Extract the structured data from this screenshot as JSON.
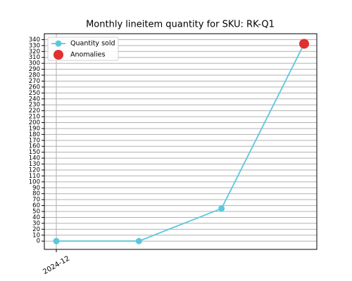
{
  "chart_data": {
    "type": "line",
    "title": "Monthly lineitem quantity for SKU: RK-Q1",
    "categories": [
      "2024-12",
      null,
      null,
      null
    ],
    "series": [
      {
        "name": "Quantity sold",
        "color": "#5bc8dc",
        "values": [
          0,
          0,
          55,
          333
        ]
      },
      {
        "name": "Anomalies",
        "color": "#e03030",
        "values": [
          null,
          null,
          null,
          333
        ],
        "marker_only": true
      }
    ],
    "ylim": [
      -14,
      350
    ],
    "yticks": [
      0,
      10,
      20,
      30,
      40,
      50,
      60,
      70,
      80,
      90,
      100,
      110,
      120,
      130,
      140,
      150,
      160,
      170,
      180,
      190,
      200,
      210,
      220,
      230,
      240,
      250,
      260,
      270,
      280,
      290,
      300,
      310,
      320,
      330,
      340
    ],
    "grid": true,
    "legend": "upper left"
  }
}
